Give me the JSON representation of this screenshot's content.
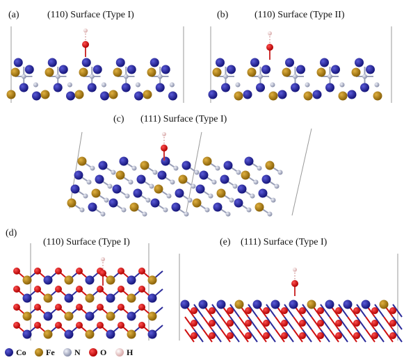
{
  "panels": [
    {
      "label": "(a)",
      "title": "(110) Surface (Type I)"
    },
    {
      "label": "(b)",
      "title": "(110) Surface (Type II)"
    },
    {
      "label": "(c)",
      "title": "(111) Surface (Type I)"
    },
    {
      "label": "(d)",
      "title": "(110) Surface (Type I)"
    },
    {
      "label": "(e)",
      "title": "(111) Surface (Type I)"
    }
  ],
  "legend": [
    "Co",
    "Fe",
    "N",
    "O",
    "H"
  ]
}
